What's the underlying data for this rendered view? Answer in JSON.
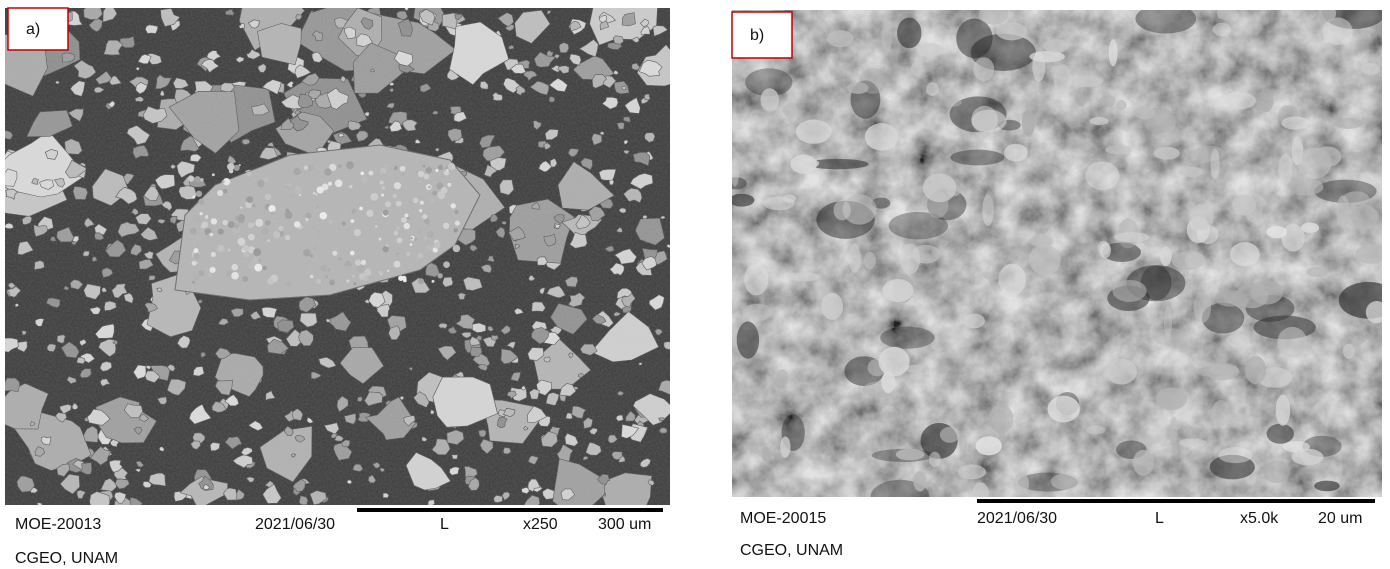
{
  "panels": [
    {
      "label": "a)",
      "sample": "MOE-20013",
      "date": "2021/06/30",
      "detector": "L",
      "magnification": "x250",
      "scale": "300 um",
      "institution": "CGEO, UNAM"
    },
    {
      "label": "b)",
      "sample": "MOE-20015",
      "date": "2021/06/30",
      "detector": "L",
      "magnification": "x5.0k",
      "scale": "20 um",
      "institution": "CGEO, UNAM"
    }
  ]
}
